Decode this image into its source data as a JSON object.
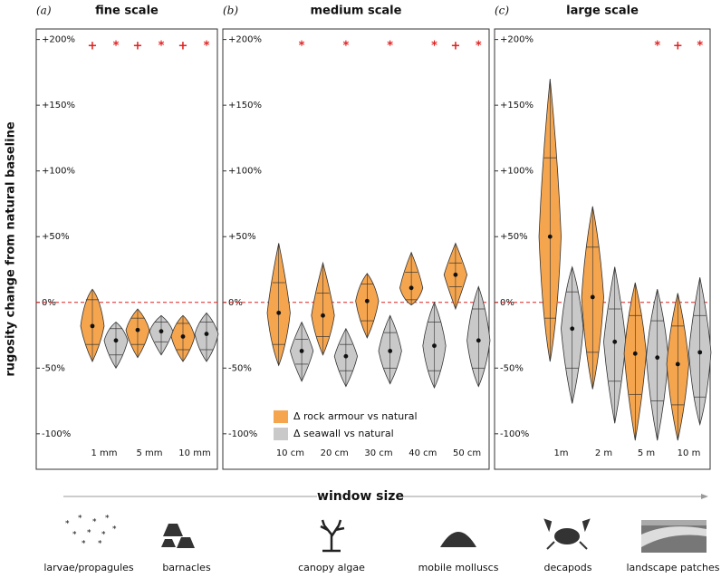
{
  "ylabel": "rugosity change from natural baseline",
  "xlabel": "window size",
  "icons": [
    "larvae/propagules",
    "barnacles",
    "canopy algae",
    "mobile molluscs",
    "decapods",
    "landscape patches"
  ],
  "chart_data": [
    {
      "type": "violin",
      "panel_label": "(a)",
      "title": "fine scale",
      "categories": [
        "1 mm",
        "5 mm",
        "10 mm"
      ],
      "ylim": [
        -127,
        208
      ],
      "yticks": [
        {
          "value": -100,
          "label": "-100%"
        },
        {
          "value": -50,
          "label": "-50%"
        },
        {
          "value": 0,
          "label": "0%"
        },
        {
          "value": 50,
          "label": "+50%"
        },
        {
          "value": 100,
          "label": "+100%"
        },
        {
          "value": 150,
          "label": "+150%"
        },
        {
          "value": 200,
          "label": "+200%"
        }
      ],
      "reference_line": 0,
      "series": [
        {
          "name": "Δ rock armour vs natural",
          "color": "#f5a54e",
          "markers": [
            "+",
            "+",
            "+"
          ],
          "max": [
            10,
            -5,
            -10
          ],
          "q3": [
            2,
            -12,
            -16
          ],
          "median": [
            -18,
            -21,
            -26
          ],
          "q1": [
            -32,
            -32,
            -36
          ],
          "min": [
            -45,
            -42,
            -45
          ]
        },
        {
          "name": "Δ seawall vs natural",
          "color": "#c9c9c9",
          "markers": [
            "*",
            "*",
            "*"
          ],
          "max": [
            -15,
            -10,
            -8
          ],
          "q3": [
            -20,
            -15,
            -15
          ],
          "median": [
            -29,
            -22,
            -24
          ],
          "q1": [
            -40,
            -30,
            -36
          ],
          "min": [
            -50,
            -40,
            -45
          ]
        }
      ]
    },
    {
      "type": "violin",
      "panel_label": "(b)",
      "title": "medium scale",
      "categories": [
        "10 cm",
        "20 cm",
        "30 cm",
        "40 cm",
        "50 cm"
      ],
      "ylim": [
        -127,
        208
      ],
      "yticks": [
        {
          "value": -100,
          "label": "-100%"
        },
        {
          "value": -50,
          "label": "-50%"
        },
        {
          "value": 0,
          "label": "0%"
        },
        {
          "value": 50,
          "label": "+50%"
        },
        {
          "value": 100,
          "label": "+100%"
        },
        {
          "value": 150,
          "label": "+150%"
        },
        {
          "value": 200,
          "label": "+200%"
        }
      ],
      "reference_line": 0,
      "legend": "lower left",
      "series": [
        {
          "name": "Δ rock armour vs natural",
          "color": "#f5a54e",
          "markers": [
            null,
            null,
            null,
            null,
            "+"
          ],
          "max": [
            45,
            30,
            22,
            38,
            45
          ],
          "q3": [
            15,
            7,
            14,
            23,
            30
          ],
          "median": [
            -8,
            -10,
            1,
            11,
            21
          ],
          "q1": [
            -32,
            -26,
            -14,
            2,
            12
          ],
          "min": [
            -48,
            -40,
            -27,
            -2,
            -5
          ]
        },
        {
          "name": "Δ seawall vs natural",
          "color": "#c9c9c9",
          "markers": [
            "*",
            "*",
            "*",
            "*",
            "*"
          ],
          "max": [
            -15,
            -20,
            -10,
            0,
            12
          ],
          "q3": [
            -28,
            -32,
            -23,
            -15,
            -5
          ],
          "median": [
            -37,
            -41,
            -37,
            -33,
            -29
          ],
          "q1": [
            -47,
            -52,
            -50,
            -52,
            -50
          ],
          "min": [
            -60,
            -64,
            -62,
            -65,
            -64
          ]
        }
      ]
    },
    {
      "type": "violin",
      "panel_label": "(c)",
      "title": "large scale",
      "categories": [
        "1m",
        "2 m",
        "5 m",
        "10 m"
      ],
      "ylim": [
        -127,
        208
      ],
      "yticks": [
        {
          "value": -100,
          "label": "-100%"
        },
        {
          "value": -50,
          "label": "-50%"
        },
        {
          "value": 0,
          "label": "0%"
        },
        {
          "value": 50,
          "label": "+50%"
        },
        {
          "value": 100,
          "label": "+100%"
        },
        {
          "value": 150,
          "label": "+150%"
        },
        {
          "value": 200,
          "label": "+200%"
        }
      ],
      "reference_line": 0,
      "series": [
        {
          "name": "Δ rock armour vs natural",
          "color": "#f5a54e",
          "markers": [
            null,
            null,
            null,
            "+"
          ],
          "max": [
            170,
            73,
            15,
            7
          ],
          "q3": [
            110,
            42,
            -10,
            -18
          ],
          "median": [
            50,
            4,
            -39,
            -47
          ],
          "q1": [
            -12,
            -38,
            -70,
            -78
          ],
          "min": [
            -45,
            -66,
            -105,
            -105
          ]
        },
        {
          "name": "Δ seawall vs natural",
          "color": "#c9c9c9",
          "markers": [
            null,
            null,
            "*",
            "*"
          ],
          "max": [
            27,
            27,
            10,
            19
          ],
          "q3": [
            8,
            -5,
            -14,
            -10
          ],
          "median": [
            -20,
            -30,
            -42,
            -38
          ],
          "q1": [
            -50,
            -60,
            -75,
            -72
          ],
          "min": [
            -77,
            -92,
            -105,
            -93
          ]
        }
      ]
    }
  ]
}
